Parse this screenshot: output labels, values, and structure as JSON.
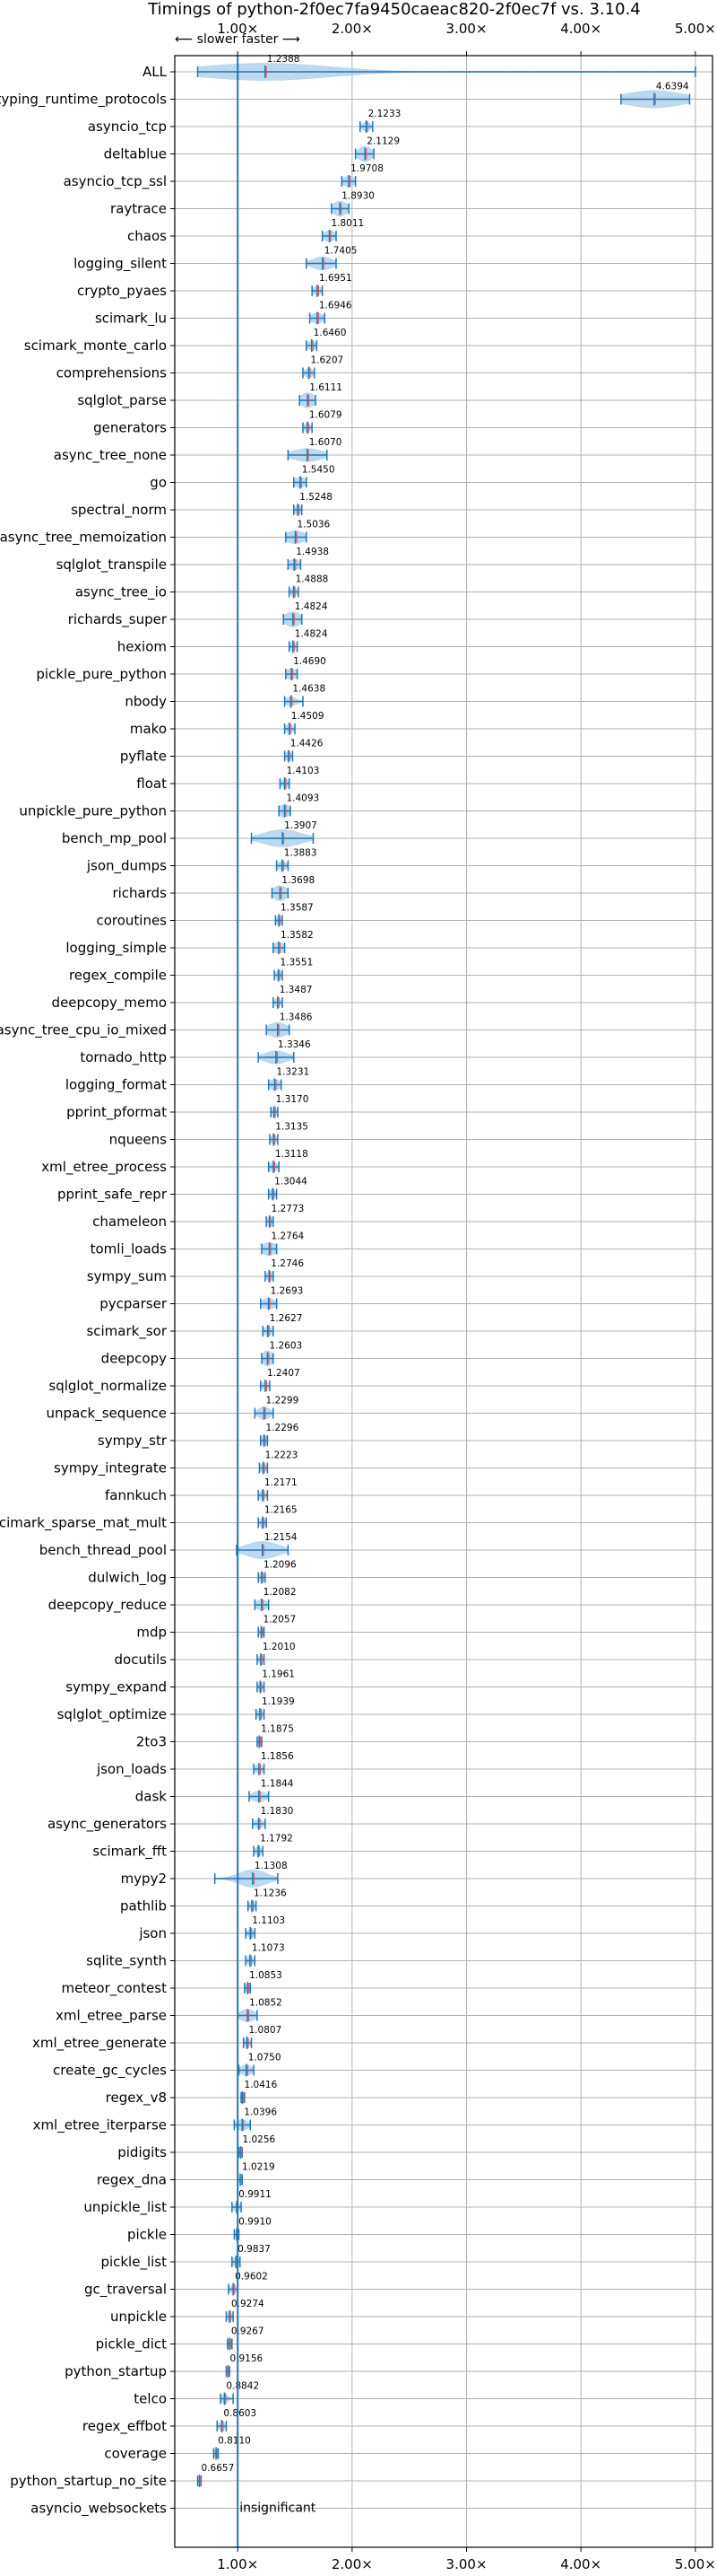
{
  "chart_data": {
    "type": "violin",
    "title": "Timings of python-2f0ec7fa9450caeac820-2f0ec7f vs. 3.10.4",
    "direction_label": "⟵ slower  faster ⟶",
    "x_ticks": [
      {
        "value": 1,
        "label": "1.00×"
      },
      {
        "value": 2,
        "label": "2.00×"
      },
      {
        "value": 3,
        "label": "3.00×"
      },
      {
        "value": 4,
        "label": "4.00×"
      },
      {
        "value": 5,
        "label": "5.00×"
      }
    ],
    "xlim": [
      0.45,
      5.15
    ],
    "insignificant_label": "insignificant",
    "colors": {
      "line": "#1f77b4",
      "violin": "#a6cce9",
      "mean": "#e64b4b",
      "grid": "#b0b0b0"
    },
    "benchmarks": [
      {
        "name": "ALL",
        "value": 1.2388,
        "label": "1.2388",
        "lo": 0.65,
        "hi": 5.0,
        "spread": 0.55,
        "width": 0.8
      },
      {
        "name": "typing_runtime_protocols",
        "value": 4.6394,
        "label": "4.6394",
        "lo": 4.35,
        "hi": 4.95,
        "spread": 0.25,
        "width": 0.8
      },
      {
        "name": "asyncio_tcp",
        "value": 2.1233,
        "label": "2.1233",
        "lo": 2.07,
        "hi": 2.18,
        "spread": 0.04,
        "width": 0.4
      },
      {
        "name": "deltablue",
        "value": 2.1129,
        "label": "2.1129",
        "lo": 2.03,
        "hi": 2.19,
        "spread": 0.06,
        "width": 0.7
      },
      {
        "name": "asyncio_tcp_ssl",
        "value": 1.9708,
        "label": "1.9708",
        "lo": 1.91,
        "hi": 2.03,
        "spread": 0.05,
        "width": 0.5
      },
      {
        "name": "raytrace",
        "value": 1.893,
        "label": "1.8930",
        "lo": 1.82,
        "hi": 1.97,
        "spread": 0.06,
        "width": 0.7
      },
      {
        "name": "chaos",
        "value": 1.8011,
        "label": "1.8011",
        "lo": 1.74,
        "hi": 1.86,
        "spread": 0.05,
        "width": 0.5
      },
      {
        "name": "logging_silent",
        "value": 1.7405,
        "label": "1.7405",
        "lo": 1.6,
        "hi": 1.86,
        "spread": 0.09,
        "width": 0.6
      },
      {
        "name": "crypto_pyaes",
        "value": 1.6951,
        "label": "1.6951",
        "lo": 1.65,
        "hi": 1.74,
        "spread": 0.04,
        "width": 0.4
      },
      {
        "name": "scimark_lu",
        "value": 1.6946,
        "label": "1.6946",
        "lo": 1.63,
        "hi": 1.76,
        "spread": 0.05,
        "width": 0.5
      },
      {
        "name": "scimark_monte_carlo",
        "value": 1.646,
        "label": "1.6460",
        "lo": 1.6,
        "hi": 1.69,
        "spread": 0.04,
        "width": 0.4
      },
      {
        "name": "comprehensions",
        "value": 1.6207,
        "label": "1.6207",
        "lo": 1.57,
        "hi": 1.67,
        "spread": 0.04,
        "width": 0.4
      },
      {
        "name": "sqlglot_parse",
        "value": 1.6111,
        "label": "1.6111",
        "lo": 1.54,
        "hi": 1.68,
        "spread": 0.06,
        "width": 0.7
      },
      {
        "name": "generators",
        "value": 1.6079,
        "label": "1.6079",
        "lo": 1.57,
        "hi": 1.65,
        "spread": 0.03,
        "width": 0.4
      },
      {
        "name": "async_tree_none",
        "value": 1.607,
        "label": "1.6070",
        "lo": 1.44,
        "hi": 1.78,
        "spread": 0.13,
        "width": 0.6
      },
      {
        "name": "go",
        "value": 1.545,
        "label": "1.5450",
        "lo": 1.49,
        "hi": 1.6,
        "spread": 0.05,
        "width": 0.5
      },
      {
        "name": "spectral_norm",
        "value": 1.5248,
        "label": "1.5248",
        "lo": 1.49,
        "hi": 1.56,
        "spread": 0.03,
        "width": 0.4
      },
      {
        "name": "async_tree_memoization",
        "value": 1.5036,
        "label": "1.5036",
        "lo": 1.42,
        "hi": 1.6,
        "spread": 0.08,
        "width": 0.6
      },
      {
        "name": "sqlglot_transpile",
        "value": 1.4938,
        "label": "1.4938",
        "lo": 1.44,
        "hi": 1.55,
        "spread": 0.05,
        "width": 0.5
      },
      {
        "name": "async_tree_io",
        "value": 1.4888,
        "label": "1.4888",
        "lo": 1.45,
        "hi": 1.53,
        "spread": 0.03,
        "width": 0.4
      },
      {
        "name": "richards_super",
        "value": 1.4824,
        "label": "1.4824",
        "lo": 1.4,
        "hi": 1.56,
        "spread": 0.07,
        "width": 0.7
      },
      {
        "name": "hexiom",
        "value": 1.4824,
        "label": "1.4824",
        "lo": 1.45,
        "hi": 1.52,
        "spread": 0.03,
        "width": 0.4
      },
      {
        "name": "pickle_pure_python",
        "value": 1.469,
        "label": "1.4690",
        "lo": 1.42,
        "hi": 1.52,
        "spread": 0.05,
        "width": 0.5
      },
      {
        "name": "nbody",
        "value": 1.4638,
        "label": "1.4638",
        "lo": 1.41,
        "hi": 1.57,
        "spread": 0.05,
        "width": 0.4
      },
      {
        "name": "mako",
        "value": 1.4509,
        "label": "1.4509",
        "lo": 1.41,
        "hi": 1.5,
        "spread": 0.04,
        "width": 0.4
      },
      {
        "name": "pyflate",
        "value": 1.4426,
        "label": "1.4426",
        "lo": 1.41,
        "hi": 1.48,
        "spread": 0.03,
        "width": 0.4
      },
      {
        "name": "float",
        "value": 1.4103,
        "label": "1.4103",
        "lo": 1.37,
        "hi": 1.45,
        "spread": 0.03,
        "width": 0.4
      },
      {
        "name": "unpickle_pure_python",
        "value": 1.4093,
        "label": "1.4093",
        "lo": 1.36,
        "hi": 1.46,
        "spread": 0.05,
        "width": 0.6
      },
      {
        "name": "bench_mp_pool",
        "value": 1.3907,
        "label": "1.3907",
        "lo": 1.12,
        "hi": 1.66,
        "spread": 0.16,
        "width": 0.8
      },
      {
        "name": "json_dumps",
        "value": 1.3883,
        "label": "1.3883",
        "lo": 1.34,
        "hi": 1.44,
        "spread": 0.04,
        "width": 0.4
      },
      {
        "name": "richards",
        "value": 1.3698,
        "label": "1.3698",
        "lo": 1.3,
        "hi": 1.44,
        "spread": 0.06,
        "width": 0.7
      },
      {
        "name": "coroutines",
        "value": 1.3587,
        "label": "1.3587",
        "lo": 1.33,
        "hi": 1.39,
        "spread": 0.03,
        "width": 0.4
      },
      {
        "name": "logging_simple",
        "value": 1.3582,
        "label": "1.3582",
        "lo": 1.31,
        "hi": 1.41,
        "spread": 0.05,
        "width": 0.5
      },
      {
        "name": "regex_compile",
        "value": 1.3551,
        "label": "1.3551",
        "lo": 1.32,
        "hi": 1.39,
        "spread": 0.03,
        "width": 0.4
      },
      {
        "name": "deepcopy_memo",
        "value": 1.3487,
        "label": "1.3487",
        "lo": 1.31,
        "hi": 1.39,
        "spread": 0.03,
        "width": 0.4
      },
      {
        "name": "async_tree_cpu_io_mixed",
        "value": 1.3486,
        "label": "1.3486",
        "lo": 1.25,
        "hi": 1.45,
        "spread": 0.08,
        "width": 0.7
      },
      {
        "name": "tornado_http",
        "value": 1.3346,
        "label": "1.3346",
        "lo": 1.18,
        "hi": 1.49,
        "spread": 0.1,
        "width": 0.6
      },
      {
        "name": "logging_format",
        "value": 1.3231,
        "label": "1.3231",
        "lo": 1.27,
        "hi": 1.38,
        "spread": 0.05,
        "width": 0.5
      },
      {
        "name": "pprint_pformat",
        "value": 1.317,
        "label": "1.3170",
        "lo": 1.29,
        "hi": 1.35,
        "spread": 0.03,
        "width": 0.4
      },
      {
        "name": "nqueens",
        "value": 1.3135,
        "label": "1.3135",
        "lo": 1.28,
        "hi": 1.35,
        "spread": 0.03,
        "width": 0.4
      },
      {
        "name": "xml_etree_process",
        "value": 1.3118,
        "label": "1.3118",
        "lo": 1.27,
        "hi": 1.36,
        "spread": 0.04,
        "width": 0.4
      },
      {
        "name": "pprint_safe_repr",
        "value": 1.3044,
        "label": "1.3044",
        "lo": 1.27,
        "hi": 1.34,
        "spread": 0.03,
        "width": 0.4
      },
      {
        "name": "chameleon",
        "value": 1.2773,
        "label": "1.2773",
        "lo": 1.25,
        "hi": 1.31,
        "spread": 0.03,
        "width": 0.4
      },
      {
        "name": "tomli_loads",
        "value": 1.2764,
        "label": "1.2764",
        "lo": 1.21,
        "hi": 1.34,
        "spread": 0.06,
        "width": 0.6
      },
      {
        "name": "sympy_sum",
        "value": 1.2746,
        "label": "1.2746",
        "lo": 1.24,
        "hi": 1.31,
        "spread": 0.03,
        "width": 0.4
      },
      {
        "name": "pycparser",
        "value": 1.2693,
        "label": "1.2693",
        "lo": 1.2,
        "hi": 1.34,
        "spread": 0.06,
        "width": 0.5
      },
      {
        "name": "scimark_sor",
        "value": 1.2627,
        "label": "1.2627",
        "lo": 1.22,
        "hi": 1.31,
        "spread": 0.04,
        "width": 0.4
      },
      {
        "name": "deepcopy",
        "value": 1.2603,
        "label": "1.2603",
        "lo": 1.21,
        "hi": 1.31,
        "spread": 0.05,
        "width": 0.7
      },
      {
        "name": "sqlglot_normalize",
        "value": 1.2407,
        "label": "1.2407",
        "lo": 1.2,
        "hi": 1.28,
        "spread": 0.03,
        "width": 0.4
      },
      {
        "name": "unpack_sequence",
        "value": 1.2299,
        "label": "1.2299",
        "lo": 1.15,
        "hi": 1.31,
        "spread": 0.05,
        "width": 0.6
      },
      {
        "name": "sympy_str",
        "value": 1.2296,
        "label": "1.2296",
        "lo": 1.2,
        "hi": 1.26,
        "spread": 0.03,
        "width": 0.4
      },
      {
        "name": "sympy_integrate",
        "value": 1.2223,
        "label": "1.2223",
        "lo": 1.19,
        "hi": 1.26,
        "spread": 0.03,
        "width": 0.4
      },
      {
        "name": "fannkuch",
        "value": 1.2171,
        "label": "1.2171",
        "lo": 1.18,
        "hi": 1.26,
        "spread": 0.03,
        "width": 0.4
      },
      {
        "name": "scimark_sparse_mat_mult",
        "value": 1.2165,
        "label": "1.2165",
        "lo": 1.18,
        "hi": 1.25,
        "spread": 0.03,
        "width": 0.4
      },
      {
        "name": "bench_thread_pool",
        "value": 1.2154,
        "label": "1.2154",
        "lo": 0.99,
        "hi": 1.44,
        "spread": 0.14,
        "width": 0.8
      },
      {
        "name": "dulwich_log",
        "value": 1.2096,
        "label": "1.2096",
        "lo": 1.18,
        "hi": 1.24,
        "spread": 0.03,
        "width": 0.4
      },
      {
        "name": "deepcopy_reduce",
        "value": 1.2082,
        "label": "1.2082",
        "lo": 1.15,
        "hi": 1.27,
        "spread": 0.05,
        "width": 0.5
      },
      {
        "name": "mdp",
        "value": 1.2057,
        "label": "1.2057",
        "lo": 1.18,
        "hi": 1.23,
        "spread": 0.02,
        "width": 0.4
      },
      {
        "name": "docutils",
        "value": 1.201,
        "label": "1.2010",
        "lo": 1.17,
        "hi": 1.23,
        "spread": 0.02,
        "width": 0.4
      },
      {
        "name": "sympy_expand",
        "value": 1.1961,
        "label": "1.1961",
        "lo": 1.17,
        "hi": 1.23,
        "spread": 0.02,
        "width": 0.4
      },
      {
        "name": "sqlglot_optimize",
        "value": 1.1939,
        "label": "1.1939",
        "lo": 1.16,
        "hi": 1.23,
        "spread": 0.03,
        "width": 0.4
      },
      {
        "name": "2to3",
        "value": 1.1875,
        "label": "1.1875",
        "lo": 1.17,
        "hi": 1.21,
        "spread": 0.02,
        "width": 0.4
      },
      {
        "name": "json_loads",
        "value": 1.1856,
        "label": "1.1856",
        "lo": 1.14,
        "hi": 1.23,
        "spread": 0.04,
        "width": 0.4
      },
      {
        "name": "dask",
        "value": 1.1844,
        "label": "1.1844",
        "lo": 1.1,
        "hi": 1.27,
        "spread": 0.06,
        "width": 0.5
      },
      {
        "name": "async_generators",
        "value": 1.183,
        "label": "1.1830",
        "lo": 1.13,
        "hi": 1.24,
        "spread": 0.04,
        "width": 0.4
      },
      {
        "name": "scimark_fft",
        "value": 1.1792,
        "label": "1.1792",
        "lo": 1.14,
        "hi": 1.22,
        "spread": 0.03,
        "width": 0.4
      },
      {
        "name": "mypy2",
        "value": 1.1308,
        "label": "1.1308",
        "lo": 0.8,
        "hi": 1.35,
        "spread": 0.12,
        "width": 0.8
      },
      {
        "name": "pathlib",
        "value": 1.1236,
        "label": "1.1236",
        "lo": 1.09,
        "hi": 1.16,
        "spread": 0.03,
        "width": 0.4
      },
      {
        "name": "json",
        "value": 1.1103,
        "label": "1.1103",
        "lo": 1.07,
        "hi": 1.15,
        "spread": 0.03,
        "width": 0.4
      },
      {
        "name": "sqlite_synth",
        "value": 1.1073,
        "label": "1.1073",
        "lo": 1.07,
        "hi": 1.15,
        "spread": 0.03,
        "width": 0.4
      },
      {
        "name": "meteor_contest",
        "value": 1.0853,
        "label": "1.0853",
        "lo": 1.06,
        "hi": 1.11,
        "spread": 0.02,
        "width": 0.4
      },
      {
        "name": "xml_etree_parse",
        "value": 1.0852,
        "label": "1.0852",
        "lo": 1.0,
        "hi": 1.17,
        "spread": 0.06,
        "width": 0.6
      },
      {
        "name": "xml_etree_generate",
        "value": 1.0807,
        "label": "1.0807",
        "lo": 1.05,
        "hi": 1.12,
        "spread": 0.03,
        "width": 0.4
      },
      {
        "name": "create_gc_cycles",
        "value": 1.075,
        "label": "1.0750",
        "lo": 1.01,
        "hi": 1.14,
        "spread": 0.05,
        "width": 0.5
      },
      {
        "name": "regex_v8",
        "value": 1.0416,
        "label": "1.0416",
        "lo": 1.03,
        "hi": 1.06,
        "spread": 0.01,
        "width": 0.3
      },
      {
        "name": "xml_etree_iterparse",
        "value": 1.0396,
        "label": "1.0396",
        "lo": 0.97,
        "hi": 1.11,
        "spread": 0.05,
        "width": 0.5
      },
      {
        "name": "pidigits",
        "value": 1.0256,
        "label": "1.0256",
        "lo": 1.01,
        "hi": 1.04,
        "spread": 0.01,
        "width": 0.3
      },
      {
        "name": "regex_dna",
        "value": 1.0219,
        "label": "1.0219",
        "lo": 1.0,
        "hi": 1.04,
        "spread": 0.01,
        "width": 0.3
      },
      {
        "name": "unpickle_list",
        "value": 0.9911,
        "label": "0.9911",
        "lo": 0.95,
        "hi": 1.03,
        "spread": 0.03,
        "width": 0.4
      },
      {
        "name": "pickle",
        "value": 0.991,
        "label": "0.9910",
        "lo": 0.97,
        "hi": 1.01,
        "spread": 0.02,
        "width": 0.3
      },
      {
        "name": "pickle_list",
        "value": 0.9837,
        "label": "0.9837",
        "lo": 0.95,
        "hi": 1.02,
        "spread": 0.03,
        "width": 0.4
      },
      {
        "name": "gc_traversal",
        "value": 0.9602,
        "label": "0.9602",
        "lo": 0.92,
        "hi": 1.0,
        "spread": 0.03,
        "width": 0.4
      },
      {
        "name": "unpickle",
        "value": 0.9274,
        "label": "0.9274",
        "lo": 0.9,
        "hi": 0.96,
        "spread": 0.02,
        "width": 0.4
      },
      {
        "name": "pickle_dict",
        "value": 0.9267,
        "label": "0.9267",
        "lo": 0.91,
        "hi": 0.95,
        "spread": 0.01,
        "width": 0.3
      },
      {
        "name": "python_startup",
        "value": 0.9156,
        "label": "0.9156",
        "lo": 0.9,
        "hi": 0.93,
        "spread": 0.01,
        "width": 0.3
      },
      {
        "name": "telco",
        "value": 0.8842,
        "label": "0.8842",
        "lo": 0.85,
        "hi": 0.96,
        "spread": 0.03,
        "width": 0.4
      },
      {
        "name": "regex_effbot",
        "value": 0.8603,
        "label": "0.8603",
        "lo": 0.82,
        "hi": 0.9,
        "spread": 0.03,
        "width": 0.4
      },
      {
        "name": "coverage",
        "value": 0.811,
        "label": "0.8110",
        "lo": 0.79,
        "hi": 0.83,
        "spread": 0.01,
        "width": 0.4
      },
      {
        "name": "python_startup_no_site",
        "value": 0.6657,
        "label": "0.6657",
        "lo": 0.65,
        "hi": 0.68,
        "spread": 0.01,
        "width": 0.4
      },
      {
        "name": "asyncio_websockets",
        "value": null,
        "label": "insignificant",
        "insignificant": true
      }
    ]
  }
}
